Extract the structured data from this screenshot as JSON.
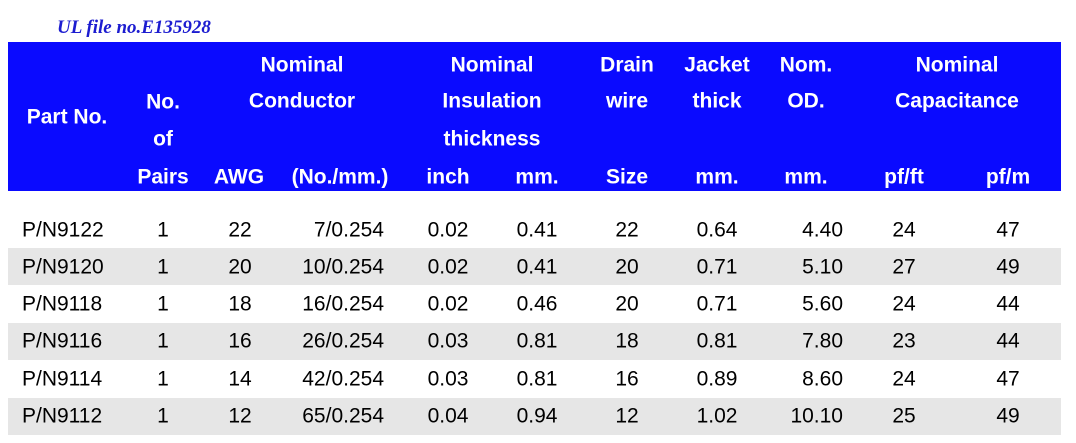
{
  "caption": "UL file no.E135928",
  "header": {
    "part_no": "Part No.",
    "pairs": [
      "No.",
      "of",
      "Pairs"
    ],
    "conductor": [
      "Nominal",
      "Conductor"
    ],
    "awg": "AWG",
    "strands": "(No./mm.)",
    "insulation": [
      "Nominal",
      "Insulation",
      "thickness"
    ],
    "inch": "inch",
    "mm": "mm.",
    "drain": [
      "Drain",
      "wire"
    ],
    "size": "Size",
    "jacket": [
      "Jacket",
      "thick"
    ],
    "jacket_unit": "mm.",
    "od": [
      "Nom.",
      "OD."
    ],
    "od_unit": "mm.",
    "capacitance": [
      "Nominal",
      "Capacitance"
    ],
    "pf_ft": "pf/ft",
    "pf_m": "pf/m"
  },
  "table": {
    "rows": [
      [
        "P/N9122",
        "1",
        "22",
        "7/0.254",
        "0.02",
        "0.41",
        "22",
        "0.64",
        "4.40",
        "24",
        "47"
      ],
      [
        "P/N9120",
        "1",
        "20",
        "10/0.254",
        "0.02",
        "0.41",
        "20",
        "0.71",
        "5.10",
        "27",
        "49"
      ],
      [
        "P/N9118",
        "1",
        "18",
        "16/0.254",
        "0.02",
        "0.46",
        "20",
        "0.71",
        "5.60",
        "24",
        "44"
      ],
      [
        "P/N9116",
        "1",
        "16",
        "26/0.254",
        "0.03",
        "0.81",
        "18",
        "0.81",
        "7.80",
        "23",
        "44"
      ],
      [
        "P/N9114",
        "1",
        "14",
        "42/0.254",
        "0.03",
        "0.81",
        "16",
        "0.89",
        "8.60",
        "24",
        "47"
      ],
      [
        "P/N9112",
        "1",
        "12",
        "65/0.254",
        "0.04",
        "0.94",
        "12",
        "1.02",
        "10.10",
        "25",
        "49"
      ]
    ]
  }
}
